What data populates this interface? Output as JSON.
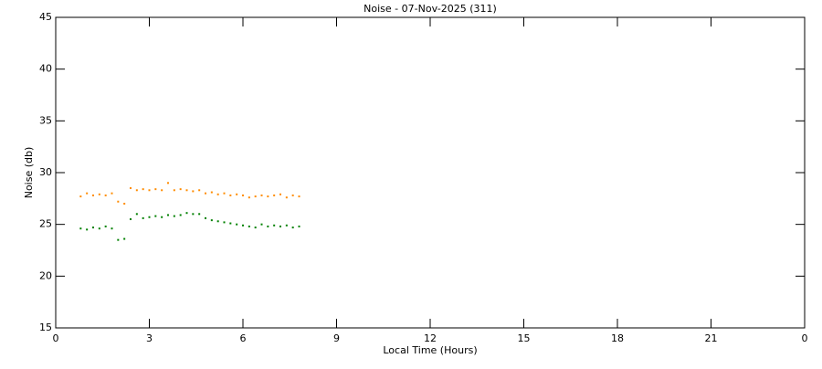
{
  "chart_data": {
    "type": "scatter",
    "title": "Noise - 07-Nov-2025 (311)",
    "x_label": "Local Time (Hours)",
    "y_label": "Noise (db)",
    "x": [
      0.8,
      1.0,
      1.2,
      1.4,
      1.6,
      1.8,
      2.0,
      2.2,
      2.4,
      2.6,
      2.8,
      3.0,
      3.2,
      3.4,
      3.6,
      3.8,
      4.0,
      4.2,
      4.4,
      4.6,
      4.8,
      5.0,
      5.2,
      5.4,
      5.6,
      5.8,
      6.0,
      6.2,
      6.4,
      6.6,
      6.8,
      7.0,
      7.2,
      7.4,
      7.6,
      7.8
    ],
    "series": [
      {
        "color": "#ff8c00",
        "values": [
          27.7,
          28.0,
          27.8,
          27.9,
          27.8,
          28.0,
          27.2,
          27.0,
          28.5,
          28.3,
          28.4,
          28.3,
          28.4,
          28.3,
          29.0,
          28.3,
          28.4,
          28.3,
          28.2,
          28.3,
          28.0,
          28.1,
          27.9,
          28.0,
          27.8,
          27.9,
          27.8,
          27.6,
          27.7,
          27.8,
          27.7,
          27.8,
          27.9,
          27.6,
          27.8,
          27.7
        ]
      },
      {
        "color": "#008000",
        "values": [
          24.6,
          24.5,
          24.7,
          24.6,
          24.8,
          24.6,
          23.5,
          23.6,
          25.5,
          26.0,
          25.6,
          25.7,
          25.8,
          25.7,
          25.9,
          25.8,
          25.9,
          26.1,
          26.0,
          26.0,
          25.6,
          25.4,
          25.3,
          25.2,
          25.1,
          25.0,
          24.9,
          24.8,
          24.7,
          25.0,
          24.8,
          24.9,
          24.8,
          24.9,
          24.7,
          24.8
        ]
      }
    ],
    "xlim": [
      0,
      24
    ],
    "xticks": [
      0,
      3,
      6,
      9,
      12,
      15,
      18,
      21,
      {
        "value": 24,
        "label": "0"
      }
    ],
    "ylim": [
      15,
      45
    ],
    "yticks": [
      15,
      20,
      25,
      30,
      35,
      40,
      45
    ]
  }
}
